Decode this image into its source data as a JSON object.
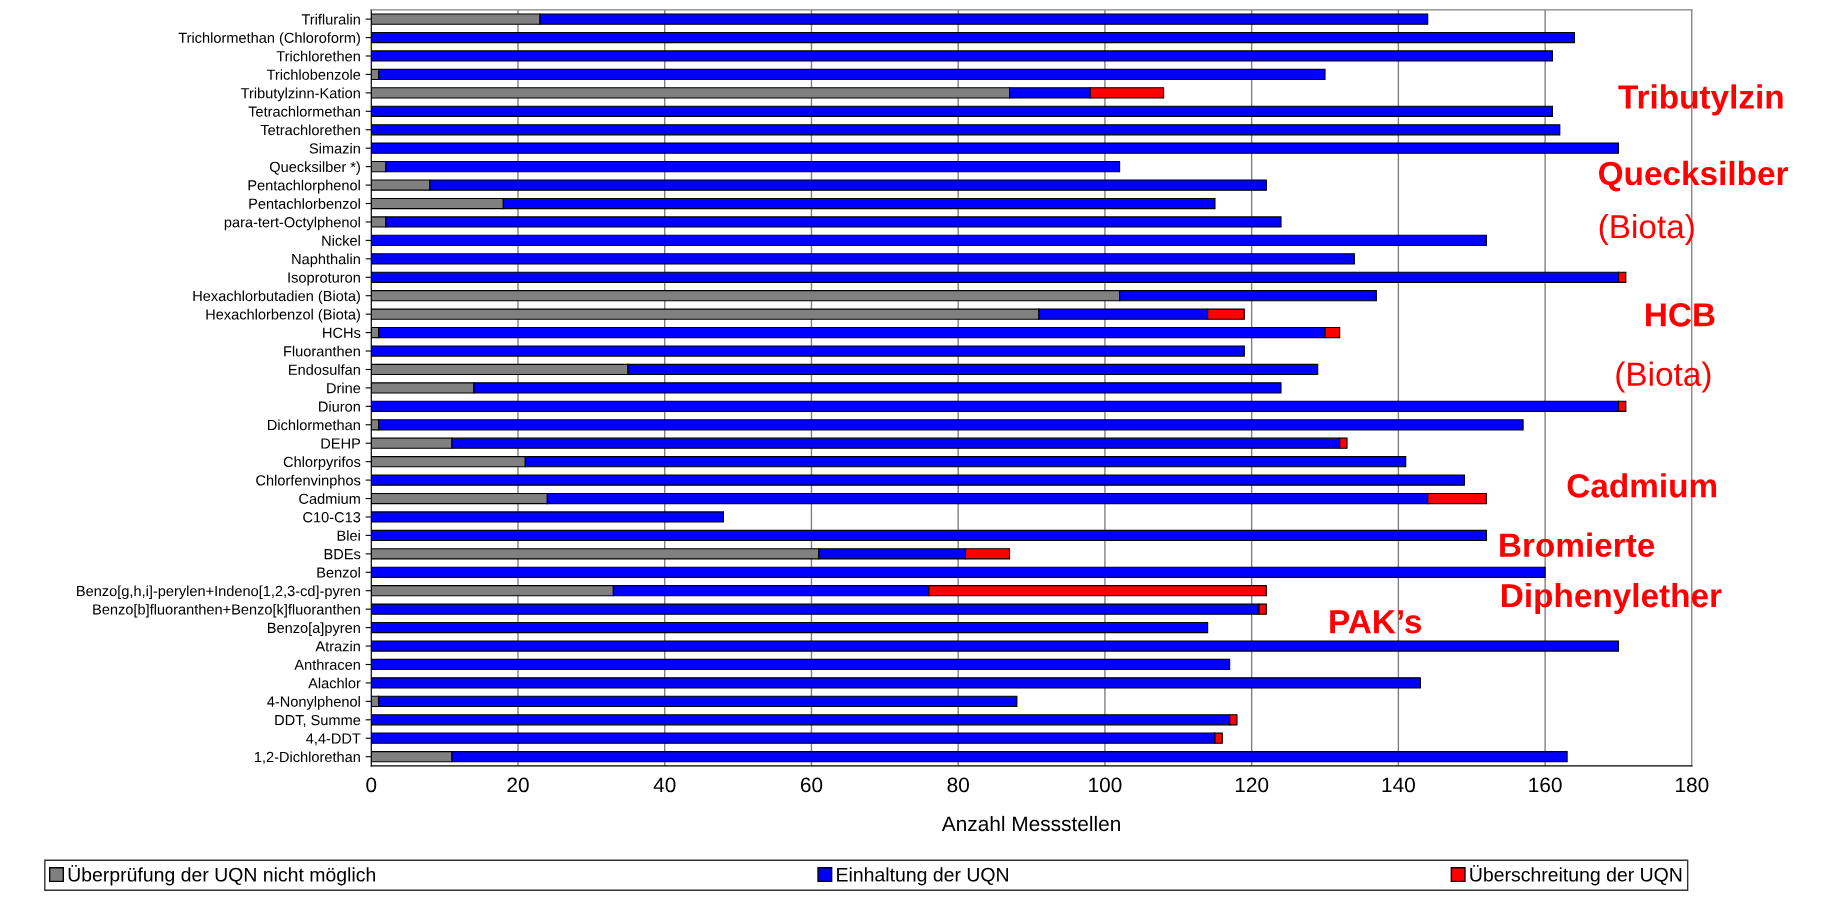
{
  "chart_data": {
    "type": "bar",
    "orientation": "horizontal",
    "stacked": true,
    "xlabel": "Anzahl Messstellen",
    "categories": [
      "Trifluralin",
      "Trichlormethan (Chloroform)",
      "Trichlorethen",
      "Trichlobenzole",
      "Tributylzinn-Kation",
      "Tetrachlormethan",
      "Tetrachlorethen",
      "Simazin",
      "Quecksilber *)",
      "Pentachlorphenol",
      "Pentachlorbenzol",
      "para-tert-Octylphenol",
      "Nickel",
      "Naphthalin",
      "Isoproturon",
      "Hexachlorbutadien (Biota)",
      "Hexachlorbenzol (Biota)",
      "HCHs",
      "Fluoranthen",
      "Endosulfan",
      "Drine",
      "Diuron",
      "Dichlormethan",
      "DEHP",
      "Chlorpyrifos",
      "Chlorfenvinphos",
      "Cadmium",
      "C10-C13",
      "Blei",
      "BDEs",
      "Benzol",
      "Benzo[g,h,i]-perylen+Indeno[1,2,3-cd]-pyren",
      "Benzo[b]fluoranthen+Benzo[k]fluoranthen",
      "Benzo[a]pyren",
      "Atrazin",
      "Anthracen",
      "Alachlor",
      "4-Nonylphenol",
      "DDT, Summe",
      "4,4-DDT",
      "1,2-Dichlorethan"
    ],
    "series": [
      {
        "name": "Überprüfung der UQN nicht möglich",
        "color": "#808080",
        "values": [
          23,
          0,
          0,
          1,
          87,
          0,
          0,
          0,
          2,
          8,
          18,
          2,
          0,
          0,
          0,
          102,
          91,
          1,
          0,
          35,
          14,
          0,
          1,
          11,
          21,
          0,
          24,
          0,
          0,
          61,
          0,
          33,
          0,
          0,
          0,
          0,
          0,
          1,
          0,
          0,
          11
        ]
      },
      {
        "name": "Einhaltung der UQN",
        "color": "#0000ff",
        "values": [
          121,
          164,
          161,
          129,
          11,
          161,
          162,
          170,
          100,
          114,
          97,
          122,
          152,
          134,
          170,
          35,
          23,
          129,
          119,
          94,
          110,
          170,
          156,
          121,
          120,
          149,
          120,
          48,
          152,
          20,
          160,
          43,
          121,
          114,
          170,
          117,
          143,
          87,
          117,
          115,
          152
        ]
      },
      {
        "name": "Überschreitung der UQN",
        "color": "#ff0000",
        "values": [
          0,
          0,
          0,
          0,
          10,
          0,
          0,
          0,
          0,
          0,
          0,
          0,
          0,
          0,
          1,
          0,
          5,
          2,
          0,
          0,
          0,
          1,
          0,
          1,
          0,
          0,
          8,
          0,
          0,
          6,
          0,
          46,
          1,
          0,
          0,
          0,
          0,
          0,
          1,
          1,
          0
        ]
      }
    ],
    "xlim": [
      0,
      180
    ],
    "xticks": [
      0,
      20,
      40,
      60,
      80,
      100,
      120,
      140,
      160,
      180
    ],
    "grid": "x",
    "legend": "bottom",
    "annotations": [
      "Tributylzin",
      "Quecksilber",
      "(Biota)",
      "HCB",
      "(Biota)",
      "Cadmium",
      "Bromierte",
      "Diphenylether",
      "PAK’s"
    ]
  }
}
